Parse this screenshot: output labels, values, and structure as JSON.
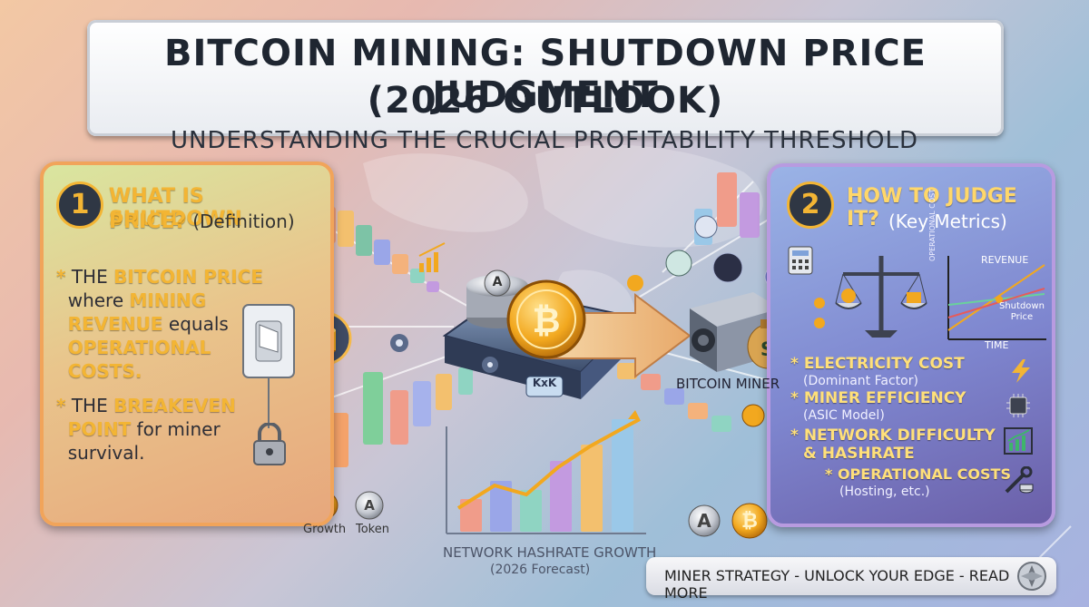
{
  "title": {
    "line1": "BITCOIN MINING: SHUTDOWN PRICE JUDGMENT",
    "line2": "(2026 OUTLOOK)",
    "subtitle": "UNDERSTANDING THE CRUCIAL PROFITABILITY THRESHOLD"
  },
  "left_panel": {
    "number": "1",
    "heading_highlight": "WHAT IS SHUTDOWN",
    "heading_line2": "PRICE?",
    "heading_suffix": "(Definition)",
    "bullet1": {
      "p1": "THE ",
      "p2": "BITCOIN PRICE",
      "p3": "where ",
      "p4": "MINING",
      "p5": "REVENUE",
      "p6": " equals",
      "p7": "OPERATIONAL",
      "p8": "COSTS."
    },
    "bullet2": {
      "p1": "THE ",
      "p2": "BREAKEVEN",
      "p3": "POINT",
      "p4": " for miner",
      "p5": "survival."
    }
  },
  "right_panel": {
    "number": "2",
    "heading_line1": "HOW TO JUDGE IT?",
    "heading_line2": "(Key Metrics)",
    "chart": {
      "ylabel": "OPERATIONAL COST",
      "xlabel": "TIME",
      "revenue_label": "REVENUE",
      "shutdown_label_1": "Shutdown",
      "shutdown_label_2": "Price"
    },
    "metrics": [
      {
        "title": "ELECTRICITY COST",
        "sub": "(Dominant Factor)",
        "icon": "lightning-icon"
      },
      {
        "title": "MINER EFFICIENCY",
        "sub": "(ASIC Model)",
        "icon": "chip-icon"
      },
      {
        "title": "NETWORK DIFFICULTY",
        "title2": "& HASHRATE",
        "icon": "growth-chart-icon"
      },
      {
        "title": "OPERATIONAL COSTS",
        "sub": "(Hosting, etc.)",
        "icon": "wrench-icon"
      }
    ]
  },
  "center": {
    "platform_label": "KxK",
    "miner_label": "BITCOIN MINER",
    "hashrate_label": "NETWORK HASHRATE GROWTH",
    "hashrate_sub": "(2026 Forecast)",
    "coin_a": "A",
    "coin_b": "B"
  },
  "legend": {
    "growth": "Growth",
    "token": "Token"
  },
  "footer": {
    "label": "MINER STRATEGY - UNLOCK YOUR EDGE - READ MORE"
  },
  "colors": {
    "gold": "#f3b534",
    "bitcoin_orange": "#f0a21c",
    "left_border": "#f1a45a",
    "right_border": "#b89be0"
  }
}
